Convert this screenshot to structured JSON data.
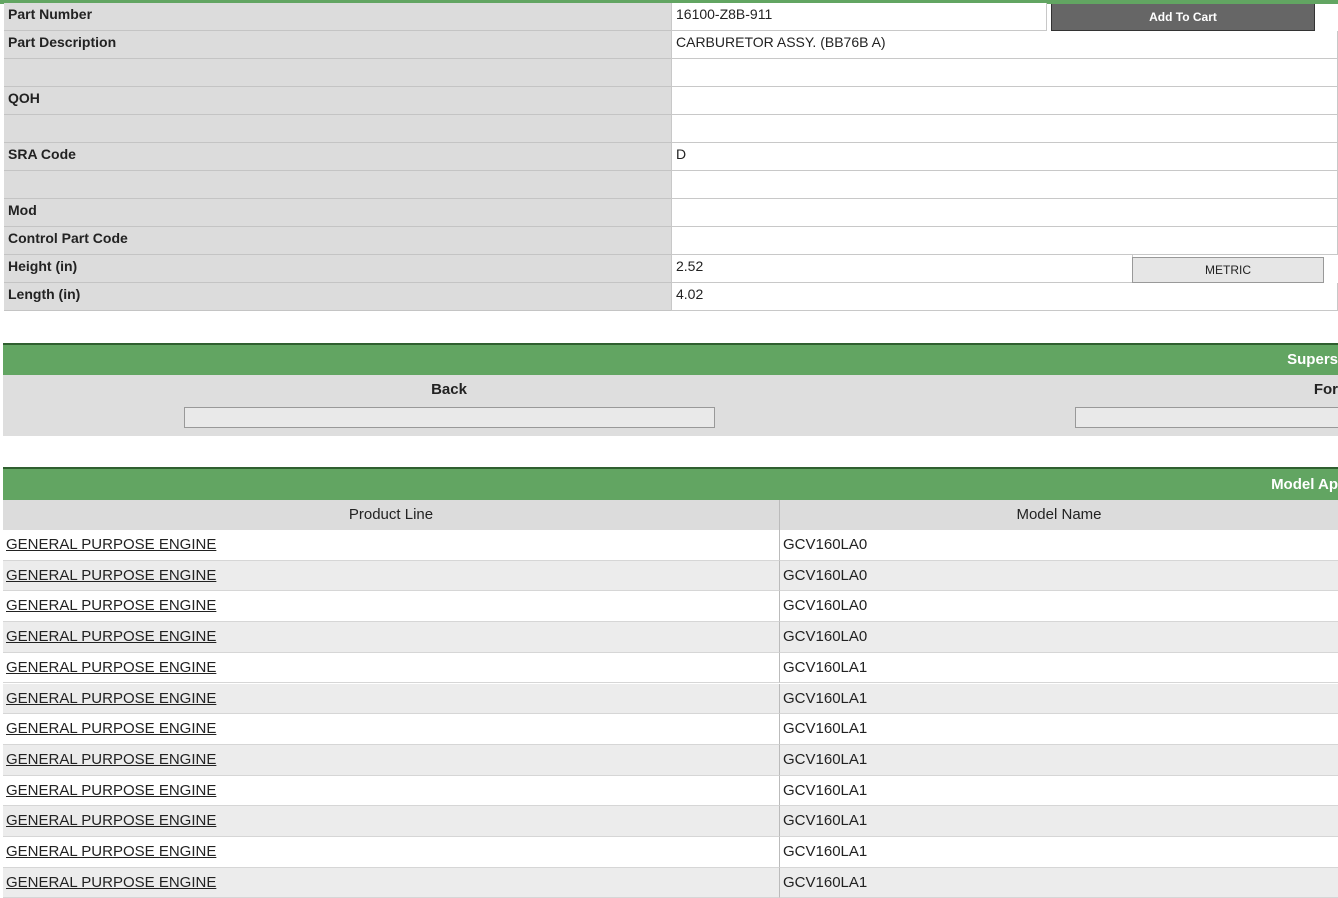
{
  "details": {
    "rows": [
      {
        "label": "Part Number",
        "value": "16100-Z8B-911"
      },
      {
        "label": "Part Description",
        "value": "CARBURETOR ASSY. (BB76B A)"
      },
      {},
      {
        "label": "QOH"
      },
      {},
      {
        "label": "SRA Code",
        "value": "D"
      },
      {},
      {
        "label": "Mod"
      },
      {
        "label": "Control Part Code"
      },
      {
        "label": "Height (in)",
        "value": "2.52"
      },
      {
        "label": "Length (in)",
        "value": "4.02"
      }
    ],
    "add_to_cart": "Add To Cart",
    "metric": "METRIC"
  },
  "supersession": {
    "title": "Supers",
    "back": "Back",
    "forward": "For"
  },
  "model_applicability": {
    "title": "Model Ap",
    "columns": [
      "Product Line",
      "Model Name"
    ],
    "rows": [
      [
        "GENERAL PURPOSE ENGINE",
        "GCV160LA0"
      ],
      [
        "GENERAL PURPOSE ENGINE",
        "GCV160LA0"
      ],
      [
        "GENERAL PURPOSE ENGINE",
        "GCV160LA0"
      ],
      [
        "GENERAL PURPOSE ENGINE",
        "GCV160LA0"
      ],
      [
        "GENERAL PURPOSE ENGINE",
        "GCV160LA1"
      ],
      [
        "GENERAL PURPOSE ENGINE",
        "GCV160LA1"
      ],
      [
        "GENERAL PURPOSE ENGINE",
        "GCV160LA1"
      ],
      [
        "GENERAL PURPOSE ENGINE",
        "GCV160LA1"
      ],
      [
        "GENERAL PURPOSE ENGINE",
        "GCV160LA1"
      ],
      [
        "GENERAL PURPOSE ENGINE",
        "GCV160LA1"
      ],
      [
        "GENERAL PURPOSE ENGINE",
        "GCV160LA1"
      ],
      [
        "GENERAL PURPOSE ENGINE",
        "GCV160LA1"
      ]
    ]
  }
}
